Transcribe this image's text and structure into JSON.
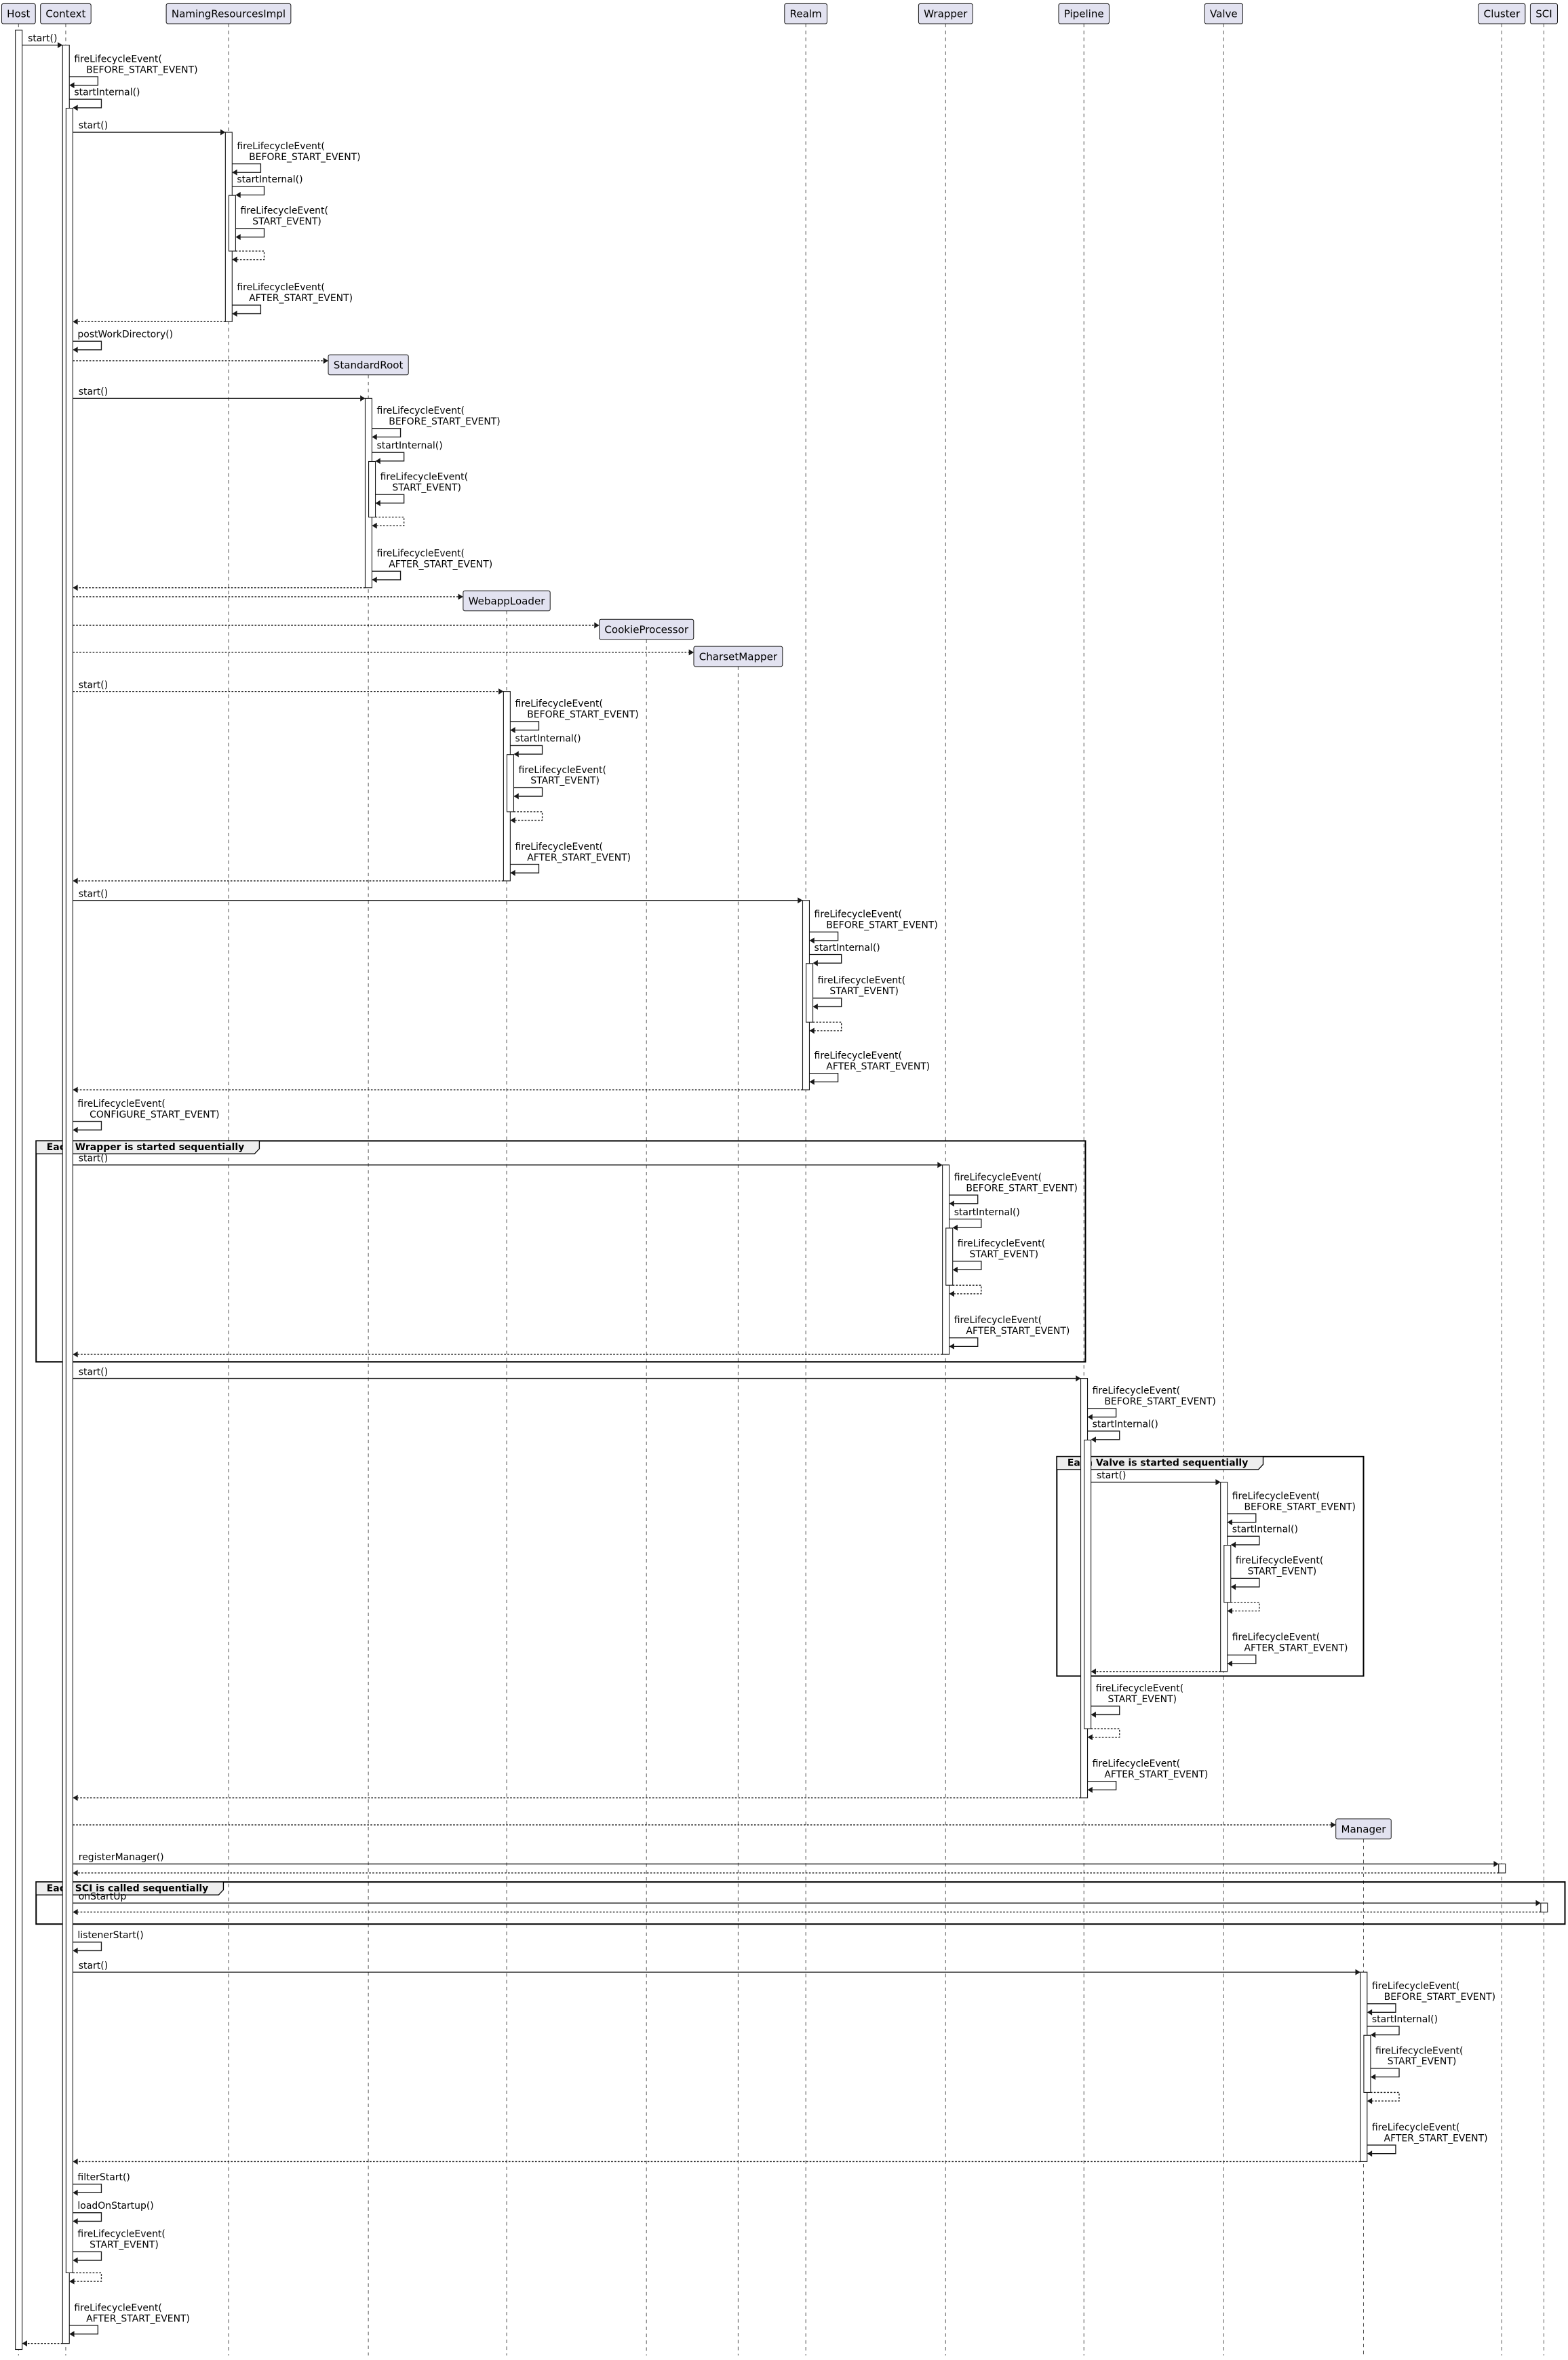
{
  "diagram": {
    "type": "sequence",
    "colors": {
      "participant_fill": "#E2E2F0",
      "participant_border": "#181818",
      "line": "#181818",
      "lifeline": "#555555",
      "group_header_fill": "#EEEEEE",
      "activation_fill": "#FFFFFF"
    },
    "participants": [
      {
        "name": "Host"
      },
      {
        "name": "Context"
      },
      {
        "name": "NamingResourcesImpl"
      },
      {
        "name": "StandardRoot",
        "created": true
      },
      {
        "name": "WebappLoader",
        "created": true
      },
      {
        "name": "CookieProcessor",
        "created": true
      },
      {
        "name": "CharsetMapper",
        "created": true
      },
      {
        "name": "Realm"
      },
      {
        "name": "Wrapper"
      },
      {
        "name": "Pipeline"
      },
      {
        "name": "Valve"
      },
      {
        "name": "Manager",
        "created": true
      },
      {
        "name": "Cluster"
      },
      {
        "name": "SCI"
      }
    ],
    "groups": [
      {
        "label": "Each Wrapper is started sequentially"
      },
      {
        "label": "Each Valve is started sequentially"
      },
      {
        "label": "Each SCI is called sequentially"
      }
    ],
    "messages": [
      {
        "from": "Host",
        "to": "Context",
        "kind": "call",
        "label": [
          "start()"
        ]
      },
      {
        "from": "Context",
        "to": "Context",
        "kind": "self",
        "label": [
          "fireLifecycleEvent(",
          "BEFORE_START_EVENT)"
        ]
      },
      {
        "from": "Context",
        "to": "Context",
        "kind": "self",
        "label": [
          "startInternal()"
        ]
      },
      {
        "from": "Context",
        "to": "NamingResourcesImpl",
        "kind": "call",
        "label": [
          "start()"
        ]
      },
      {
        "from": "NamingResourcesImpl",
        "to": "NamingResourcesImpl",
        "kind": "self",
        "label": [
          "fireLifecycleEvent(",
          "BEFORE_START_EVENT)"
        ]
      },
      {
        "from": "NamingResourcesImpl",
        "to": "NamingResourcesImpl",
        "kind": "self",
        "label": [
          "startInternal()"
        ]
      },
      {
        "from": "NamingResourcesImpl",
        "to": "NamingResourcesImpl",
        "kind": "self",
        "label": [
          "fireLifecycleEvent(",
          "START_EVENT)"
        ]
      },
      {
        "from": "NamingResourcesImpl",
        "to": "NamingResourcesImpl",
        "kind": "selfret",
        "label": []
      },
      {
        "from": "NamingResourcesImpl",
        "to": "NamingResourcesImpl",
        "kind": "self",
        "label": [
          "fireLifecycleEvent(",
          "AFTER_START_EVENT)"
        ]
      },
      {
        "from": "NamingResourcesImpl",
        "to": "Context",
        "kind": "return",
        "label": []
      },
      {
        "from": "Context",
        "to": "Context",
        "kind": "self",
        "label": [
          "postWorkDirectory()"
        ]
      },
      {
        "from": "Context",
        "to": "StandardRoot",
        "kind": "create",
        "label": []
      },
      {
        "from": "Context",
        "to": "StandardRoot",
        "kind": "call",
        "label": [
          "start()"
        ]
      },
      {
        "from": "StandardRoot",
        "to": "StandardRoot",
        "kind": "self",
        "label": [
          "fireLifecycleEvent(",
          "BEFORE_START_EVENT)"
        ]
      },
      {
        "from": "StandardRoot",
        "to": "StandardRoot",
        "kind": "self",
        "label": [
          "startInternal()"
        ]
      },
      {
        "from": "StandardRoot",
        "to": "StandardRoot",
        "kind": "self",
        "label": [
          "fireLifecycleEvent(",
          "START_EVENT)"
        ]
      },
      {
        "from": "StandardRoot",
        "to": "StandardRoot",
        "kind": "selfret",
        "label": []
      },
      {
        "from": "StandardRoot",
        "to": "StandardRoot",
        "kind": "self",
        "label": [
          "fireLifecycleEvent(",
          "AFTER_START_EVENT)"
        ]
      },
      {
        "from": "StandardRoot",
        "to": "Context",
        "kind": "return",
        "label": []
      },
      {
        "from": "Context",
        "to": "WebappLoader",
        "kind": "create",
        "label": []
      },
      {
        "from": "Context",
        "to": "CookieProcessor",
        "kind": "create",
        "label": []
      },
      {
        "from": "Context",
        "to": "CharsetMapper",
        "kind": "create",
        "label": []
      },
      {
        "from": "Context",
        "to": "WebappLoader",
        "kind": "dcall",
        "label": [
          "start()"
        ]
      },
      {
        "from": "WebappLoader",
        "to": "WebappLoader",
        "kind": "self",
        "label": [
          "fireLifecycleEvent(",
          "BEFORE_START_EVENT)"
        ]
      },
      {
        "from": "WebappLoader",
        "to": "WebappLoader",
        "kind": "self",
        "label": [
          "startInternal()"
        ]
      },
      {
        "from": "WebappLoader",
        "to": "WebappLoader",
        "kind": "self",
        "label": [
          "fireLifecycleEvent(",
          "START_EVENT)"
        ]
      },
      {
        "from": "WebappLoader",
        "to": "WebappLoader",
        "kind": "selfret",
        "label": []
      },
      {
        "from": "WebappLoader",
        "to": "WebappLoader",
        "kind": "self",
        "label": [
          "fireLifecycleEvent(",
          "AFTER_START_EVENT)"
        ]
      },
      {
        "from": "WebappLoader",
        "to": "Context",
        "kind": "return",
        "label": []
      },
      {
        "from": "Context",
        "to": "Realm",
        "kind": "call",
        "label": [
          "start()"
        ]
      },
      {
        "from": "Realm",
        "to": "Realm",
        "kind": "self",
        "label": [
          "fireLifecycleEvent(",
          "BEFORE_START_EVENT)"
        ]
      },
      {
        "from": "Realm",
        "to": "Realm",
        "kind": "self",
        "label": [
          "startInternal()"
        ]
      },
      {
        "from": "Realm",
        "to": "Realm",
        "kind": "self",
        "label": [
          "fireLifecycleEvent(",
          "START_EVENT)"
        ]
      },
      {
        "from": "Realm",
        "to": "Realm",
        "kind": "selfret",
        "label": []
      },
      {
        "from": "Realm",
        "to": "Realm",
        "kind": "self",
        "label": [
          "fireLifecycleEvent(",
          "AFTER_START_EVENT)"
        ]
      },
      {
        "from": "Realm",
        "to": "Context",
        "kind": "return",
        "label": []
      },
      {
        "from": "Context",
        "to": "Context",
        "kind": "self",
        "label": [
          "fireLifecycleEvent(",
          "CONFIGURE_START_EVENT)"
        ]
      },
      {
        "from": "Context",
        "to": "Wrapper",
        "kind": "call",
        "label": [
          "start()"
        ]
      },
      {
        "from": "Wrapper",
        "to": "Wrapper",
        "kind": "self",
        "label": [
          "fireLifecycleEvent(",
          "BEFORE_START_EVENT)"
        ]
      },
      {
        "from": "Wrapper",
        "to": "Wrapper",
        "kind": "self",
        "label": [
          "startInternal()"
        ]
      },
      {
        "from": "Wrapper",
        "to": "Wrapper",
        "kind": "self",
        "label": [
          "fireLifecycleEvent(",
          "START_EVENT)"
        ]
      },
      {
        "from": "Wrapper",
        "to": "Wrapper",
        "kind": "selfret",
        "label": []
      },
      {
        "from": "Wrapper",
        "to": "Wrapper",
        "kind": "self",
        "label": [
          "fireLifecycleEvent(",
          "AFTER_START_EVENT)"
        ]
      },
      {
        "from": "Wrapper",
        "to": "Context",
        "kind": "return",
        "label": []
      },
      {
        "from": "Context",
        "to": "Pipeline",
        "kind": "call",
        "label": [
          "start()"
        ]
      },
      {
        "from": "Pipeline",
        "to": "Pipeline",
        "kind": "self",
        "label": [
          "fireLifecycleEvent(",
          "BEFORE_START_EVENT)"
        ]
      },
      {
        "from": "Pipeline",
        "to": "Pipeline",
        "kind": "self",
        "label": [
          "startInternal()"
        ]
      },
      {
        "from": "Pipeline",
        "to": "Valve",
        "kind": "call",
        "label": [
          "start()"
        ]
      },
      {
        "from": "Valve",
        "to": "Valve",
        "kind": "self",
        "label": [
          "fireLifecycleEvent(",
          "BEFORE_START_EVENT)"
        ]
      },
      {
        "from": "Valve",
        "to": "Valve",
        "kind": "self",
        "label": [
          "startInternal()"
        ]
      },
      {
        "from": "Valve",
        "to": "Valve",
        "kind": "self",
        "label": [
          "fireLifecycleEvent(",
          "START_EVENT)"
        ]
      },
      {
        "from": "Valve",
        "to": "Valve",
        "kind": "selfret",
        "label": []
      },
      {
        "from": "Valve",
        "to": "Valve",
        "kind": "self",
        "label": [
          "fireLifecycleEvent(",
          "AFTER_START_EVENT)"
        ]
      },
      {
        "from": "Valve",
        "to": "Pipeline",
        "kind": "return",
        "label": []
      },
      {
        "from": "Pipeline",
        "to": "Pipeline",
        "kind": "self",
        "label": [
          "fireLifecycleEvent(",
          "START_EVENT)"
        ]
      },
      {
        "from": "Pipeline",
        "to": "Pipeline",
        "kind": "selfret",
        "label": []
      },
      {
        "from": "Pipeline",
        "to": "Pipeline",
        "kind": "self",
        "label": [
          "fireLifecycleEvent(",
          "AFTER_START_EVENT)"
        ]
      },
      {
        "from": "Pipeline",
        "to": "Context",
        "kind": "return",
        "label": []
      },
      {
        "from": "Context",
        "to": "Manager",
        "kind": "create",
        "label": []
      },
      {
        "from": "Context",
        "to": "Cluster",
        "kind": "call",
        "label": [
          "registerManager()"
        ]
      },
      {
        "from": "Cluster",
        "to": "Context",
        "kind": "return",
        "label": []
      },
      {
        "from": "Context",
        "to": "SCI",
        "kind": "call",
        "label": [
          "onStartUp"
        ]
      },
      {
        "from": "SCI",
        "to": "Context",
        "kind": "return",
        "label": []
      },
      {
        "from": "Context",
        "to": "Context",
        "kind": "self",
        "label": [
          "listenerStart()"
        ]
      },
      {
        "from": "Context",
        "to": "Manager",
        "kind": "call",
        "label": [
          "start()"
        ]
      },
      {
        "from": "Manager",
        "to": "Manager",
        "kind": "self",
        "label": [
          "fireLifecycleEvent(",
          "BEFORE_START_EVENT)"
        ]
      },
      {
        "from": "Manager",
        "to": "Manager",
        "kind": "self",
        "label": [
          "startInternal()"
        ]
      },
      {
        "from": "Manager",
        "to": "Manager",
        "kind": "self",
        "label": [
          "fireLifecycleEvent(",
          "START_EVENT)"
        ]
      },
      {
        "from": "Manager",
        "to": "Manager",
        "kind": "selfret",
        "label": []
      },
      {
        "from": "Manager",
        "to": "Manager",
        "kind": "self",
        "label": [
          "fireLifecycleEvent(",
          "AFTER_START_EVENT)"
        ]
      },
      {
        "from": "Manager",
        "to": "Context",
        "kind": "return",
        "label": []
      },
      {
        "from": "Context",
        "to": "Context",
        "kind": "self",
        "label": [
          "filterStart()"
        ]
      },
      {
        "from": "Context",
        "to": "Context",
        "kind": "self",
        "label": [
          "loadOnStartup()"
        ]
      },
      {
        "from": "Context",
        "to": "Context",
        "kind": "self",
        "label": [
          "fireLifecycleEvent(",
          "START_EVENT)"
        ]
      },
      {
        "from": "Context",
        "to": "Context",
        "kind": "selfret",
        "label": []
      },
      {
        "from": "Context",
        "to": "Context",
        "kind": "self",
        "label": [
          "fireLifecycleEvent(",
          "AFTER_START_EVENT)"
        ]
      },
      {
        "from": "Context",
        "to": "Host",
        "kind": "return",
        "label": []
      }
    ]
  }
}
